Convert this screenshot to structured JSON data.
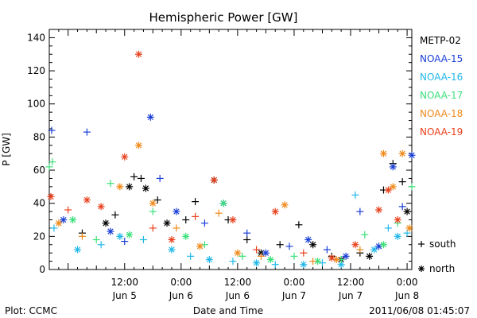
{
  "chart_data": {
    "type": "scatter",
    "title": "Hemispheric Power [GW]",
    "xlabel": "Date and Time",
    "ylabel": "P [GW]",
    "ylim": [
      0,
      145
    ],
    "yticks": [
      0,
      20,
      40,
      60,
      80,
      100,
      120,
      140
    ],
    "xlim": [
      "2011-06-04T20:00",
      "2011-06-08T01:00"
    ],
    "xticks": [
      {
        "time": "2011-06-05T12:00",
        "label1": "12:00",
        "label2": "Jun 5"
      },
      {
        "time": "2011-06-06T00:00",
        "label1": "0:00",
        "label2": "Jun 6"
      },
      {
        "time": "2011-06-06T12:00",
        "label1": "12:00",
        "label2": "Jun 6"
      },
      {
        "time": "2011-06-07T00:00",
        "label1": "0:00",
        "label2": "Jun 7"
      },
      {
        "time": "2011-06-07T12:00",
        "label1": "12:00",
        "label2": "Jun 7"
      },
      {
        "time": "2011-06-08T00:00",
        "label1": "0:00",
        "label2": "Jun 8"
      }
    ],
    "legend_placement": "right",
    "marker_legend": [
      {
        "symbol": "+",
        "label": "south"
      },
      {
        "symbol": "*",
        "label": "north"
      }
    ],
    "series": [
      {
        "name": "METP-02",
        "color": "#000000",
        "points": [
          [
            "2011-06-05T03:00",
            22,
            "+"
          ],
          [
            "2011-06-05T08:00",
            28,
            "*"
          ],
          [
            "2011-06-05T10:00",
            33,
            "+"
          ],
          [
            "2011-06-05T13:00",
            50,
            "*"
          ],
          [
            "2011-06-05T14:00",
            56,
            "+"
          ],
          [
            "2011-06-05T15:30",
            55,
            "+"
          ],
          [
            "2011-06-05T16:30",
            49,
            "*"
          ],
          [
            "2011-06-05T19:00",
            42,
            "+"
          ],
          [
            "2011-06-05T21:00",
            28,
            "*"
          ],
          [
            "2011-06-06T01:00",
            30,
            "+"
          ],
          [
            "2011-06-06T03:00",
            41,
            "+"
          ],
          [
            "2011-06-06T07:00",
            54,
            "*"
          ],
          [
            "2011-06-06T10:00",
            30,
            "+"
          ],
          [
            "2011-06-06T14:00",
            18,
            "+"
          ],
          [
            "2011-06-06T17:00",
            10,
            "*"
          ],
          [
            "2011-06-06T21:00",
            15,
            "+"
          ],
          [
            "2011-06-07T01:00",
            27,
            "+"
          ],
          [
            "2011-06-07T04:00",
            15,
            "*"
          ],
          [
            "2011-06-07T08:00",
            8,
            "+"
          ],
          [
            "2011-06-07T10:00",
            6,
            "*"
          ],
          [
            "2011-06-07T14:00",
            10,
            "+"
          ],
          [
            "2011-06-07T16:00",
            8,
            "*"
          ],
          [
            "2011-06-07T19:00",
            48,
            "+"
          ],
          [
            "2011-06-07T21:00",
            64,
            "+"
          ],
          [
            "2011-06-07T23:00",
            53,
            "+"
          ],
          [
            "2011-06-08T00:00",
            35,
            "*"
          ]
        ]
      },
      {
        "name": "NOAA-15",
        "color": "#1a3fd6",
        "points": [
          [
            "2011-06-04T20:30",
            84,
            "+"
          ],
          [
            "2011-06-04T23:00",
            30,
            "*"
          ],
          [
            "2011-06-05T04:00",
            83,
            "+"
          ],
          [
            "2011-06-05T09:00",
            23,
            "*"
          ],
          [
            "2011-06-05T12:00",
            17,
            "+"
          ],
          [
            "2011-06-05T17:30",
            92,
            "*"
          ],
          [
            "2011-06-05T19:30",
            55,
            "+"
          ],
          [
            "2011-06-05T23:00",
            35,
            "*"
          ],
          [
            "2011-06-06T05:00",
            28,
            "+"
          ],
          [
            "2011-06-06T09:00",
            40,
            "*"
          ],
          [
            "2011-06-06T14:00",
            22,
            "+"
          ],
          [
            "2011-06-06T18:00",
            10,
            "*"
          ],
          [
            "2011-06-06T23:00",
            14,
            "+"
          ],
          [
            "2011-06-07T03:00",
            18,
            "*"
          ],
          [
            "2011-06-07T07:00",
            12,
            "+"
          ],
          [
            "2011-06-07T11:00",
            8,
            "*"
          ],
          [
            "2011-06-07T14:00",
            35,
            "+"
          ],
          [
            "2011-06-07T18:00",
            14,
            "*"
          ],
          [
            "2011-06-07T21:00",
            62,
            "*"
          ],
          [
            "2011-06-07T23:00",
            38,
            "+"
          ],
          [
            "2011-06-08T01:00",
            69,
            "*"
          ]
        ]
      },
      {
        "name": "NOAA-16",
        "color": "#22b8e8",
        "points": [
          [
            "2011-06-04T21:00",
            25,
            "+"
          ],
          [
            "2011-06-05T02:00",
            12,
            "*"
          ],
          [
            "2011-06-05T07:00",
            15,
            "+"
          ],
          [
            "2011-06-05T11:00",
            20,
            "*"
          ],
          [
            "2011-06-05T16:00",
            18,
            "+"
          ],
          [
            "2011-06-05T22:00",
            12,
            "*"
          ],
          [
            "2011-06-06T02:00",
            8,
            "+"
          ],
          [
            "2011-06-06T06:00",
            6,
            "*"
          ],
          [
            "2011-06-06T11:00",
            5,
            "+"
          ],
          [
            "2011-06-06T16:00",
            4,
            "*"
          ],
          [
            "2011-06-06T20:00",
            3,
            "+"
          ],
          [
            "2011-06-07T02:00",
            3,
            "*"
          ],
          [
            "2011-06-07T06:00",
            4,
            "+"
          ],
          [
            "2011-06-07T10:00",
            3,
            "*"
          ],
          [
            "2011-06-07T13:00",
            45,
            "+"
          ],
          [
            "2011-06-07T17:00",
            12,
            "*"
          ],
          [
            "2011-06-07T20:00",
            25,
            "+"
          ],
          [
            "2011-06-07T22:00",
            20,
            "*"
          ],
          [
            "2011-06-08T00:00",
            22,
            "+"
          ]
        ]
      },
      {
        "name": "NOAA-17",
        "color": "#3be07a",
        "points": [
          [
            "2011-06-04T20:00",
            62,
            "+"
          ],
          [
            "2011-06-04T20:40",
            65,
            "+"
          ],
          [
            "2011-06-05T01:00",
            30,
            "*"
          ],
          [
            "2011-06-05T06:00",
            18,
            "+"
          ],
          [
            "2011-06-05T09:00",
            52,
            "+"
          ],
          [
            "2011-06-05T13:00",
            21,
            "*"
          ],
          [
            "2011-06-05T18:00",
            35,
            "+"
          ],
          [
            "2011-06-06T01:00",
            20,
            "*"
          ],
          [
            "2011-06-06T05:00",
            15,
            "+"
          ],
          [
            "2011-06-06T09:00",
            40,
            "*"
          ],
          [
            "2011-06-06T13:00",
            8,
            "+"
          ],
          [
            "2011-06-06T19:00",
            6,
            "*"
          ],
          [
            "2011-06-07T00:00",
            8,
            "+"
          ],
          [
            "2011-06-07T05:00",
            5,
            "*"
          ],
          [
            "2011-06-07T10:00",
            6,
            "+"
          ],
          [
            "2011-06-07T15:00",
            21,
            "+"
          ],
          [
            "2011-06-07T19:00",
            15,
            "*"
          ],
          [
            "2011-06-07T22:00",
            28,
            "+"
          ],
          [
            "2011-06-08T01:00",
            50,
            "+"
          ]
        ]
      },
      {
        "name": "NOAA-18",
        "color": "#f08a1c",
        "points": [
          [
            "2011-06-04T22:00",
            28,
            "*"
          ],
          [
            "2011-06-05T03:00",
            20,
            "+"
          ],
          [
            "2011-06-05T11:00",
            50,
            "*"
          ],
          [
            "2011-06-05T15:00",
            75,
            "*"
          ],
          [
            "2011-06-05T18:00",
            40,
            "*"
          ],
          [
            "2011-06-05T23:00",
            25,
            "+"
          ],
          [
            "2011-06-06T04:00",
            14,
            "*"
          ],
          [
            "2011-06-06T08:00",
            34,
            "+"
          ],
          [
            "2011-06-06T12:00",
            10,
            "*"
          ],
          [
            "2011-06-06T17:00",
            8,
            "+"
          ],
          [
            "2011-06-06T22:00",
            39,
            "*"
          ],
          [
            "2011-06-07T04:00",
            5,
            "+"
          ],
          [
            "2011-06-07T09:00",
            6,
            "*"
          ],
          [
            "2011-06-07T14:00",
            12,
            "+"
          ],
          [
            "2011-06-07T19:00",
            70,
            "*"
          ],
          [
            "2011-06-07T21:00",
            50,
            "*"
          ],
          [
            "2011-06-07T23:00",
            70,
            "*"
          ],
          [
            "2011-06-08T00:30",
            25,
            "*"
          ]
        ]
      },
      {
        "name": "NOAA-19",
        "color": "#e8401c",
        "points": [
          [
            "2011-06-04T20:20",
            44,
            "*"
          ],
          [
            "2011-06-05T00:00",
            36,
            "+"
          ],
          [
            "2011-06-05T04:00",
            42,
            "*"
          ],
          [
            "2011-06-05T07:00",
            38,
            "*"
          ],
          [
            "2011-06-05T12:00",
            68,
            "*"
          ],
          [
            "2011-06-05T15:00",
            130,
            "*"
          ],
          [
            "2011-06-05T18:00",
            25,
            "+"
          ],
          [
            "2011-06-05T22:00",
            18,
            "*"
          ],
          [
            "2011-06-06T03:00",
            32,
            "+"
          ],
          [
            "2011-06-06T07:00",
            54,
            "*"
          ],
          [
            "2011-06-06T11:00",
            30,
            "*"
          ],
          [
            "2011-06-06T16:00",
            12,
            "+"
          ],
          [
            "2011-06-06T20:00",
            35,
            "*"
          ],
          [
            "2011-06-07T02:00",
            10,
            "+"
          ],
          [
            "2011-06-07T08:00",
            7,
            "*"
          ],
          [
            "2011-06-07T13:00",
            15,
            "*"
          ],
          [
            "2011-06-07T18:00",
            36,
            "*"
          ],
          [
            "2011-06-07T20:00",
            48,
            "*"
          ],
          [
            "2011-06-07T22:00",
            30,
            "*"
          ]
        ]
      }
    ]
  },
  "footer": {
    "plot_credit": "Plot: CCMC",
    "timestamp": "2011/06/08 01:45:07"
  }
}
